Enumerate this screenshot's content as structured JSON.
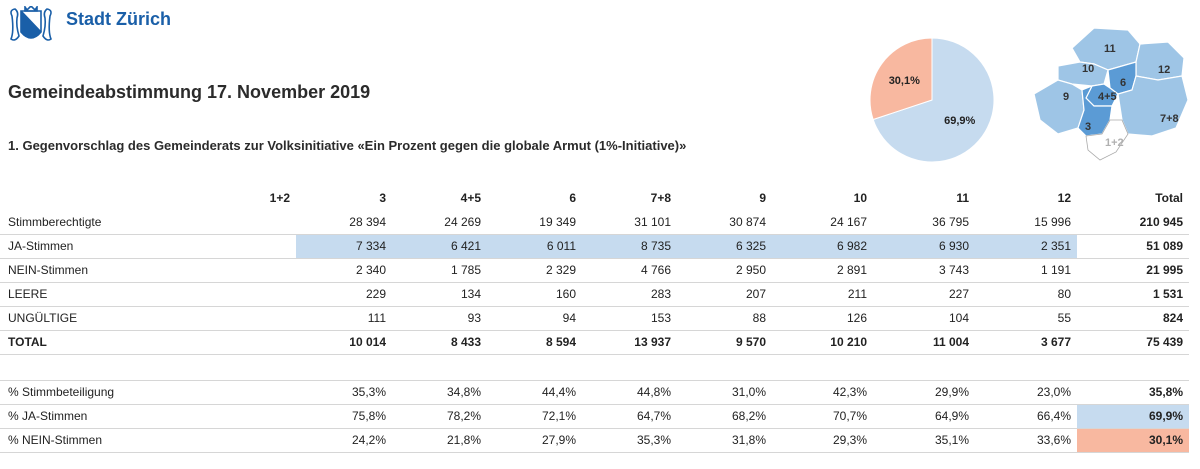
{
  "brand": {
    "name": "Stadt Zürich",
    "logo": "zurich-coat-of-arms-icon"
  },
  "title": "Gemeindeabstimmung 17. November 2019",
  "subtitle": "1. Gegenvorschlag des Gemeinderats zur Volksinitiative «Ein Prozent gegen die globale Armut (1%-Initiative)»",
  "colors": {
    "ja": "#c6dbef",
    "nein": "#f8b8a0",
    "brand": "#1a5fa8",
    "map_fill": "#9ec5e6",
    "map_fill_dark": "#5b9bd5",
    "map_empty": "#ffffff"
  },
  "chart_data": [
    {
      "type": "pie",
      "title": "",
      "slices": [
        {
          "label": "JA",
          "value": 69.9,
          "text": "69,9%",
          "color": "#c6dbef"
        },
        {
          "label": "NEIN",
          "value": 30.1,
          "text": "30,1%",
          "color": "#f8b8a0"
        }
      ]
    },
    {
      "type": "table",
      "columns": [
        "",
        "1+2",
        "3",
        "4+5",
        "6",
        "7+8",
        "9",
        "10",
        "11",
        "12",
        "Total"
      ],
      "rows": [
        {
          "label": "Stimmberechtigte",
          "values": [
            "",
            "28 394",
            "24 269",
            "19 349",
            "31 101",
            "30 874",
            "24 167",
            "36 795",
            "15 996",
            "210 945"
          ]
        },
        {
          "label": "JA-Stimmen",
          "values": [
            "",
            "7 334",
            "6 421",
            "6 011",
            "8 735",
            "6 325",
            "6 982",
            "6 930",
            "2 351",
            "51 089"
          ]
        },
        {
          "label": "NEIN-Stimmen",
          "values": [
            "",
            "2 340",
            "1 785",
            "2 329",
            "4 766",
            "2 950",
            "2 891",
            "3 743",
            "1 191",
            "21 995"
          ]
        },
        {
          "label": "LEERE",
          "values": [
            "",
            "229",
            "134",
            "160",
            "283",
            "207",
            "211",
            "227",
            "80",
            "1 531"
          ]
        },
        {
          "label": "UNGÜLTIGE",
          "values": [
            "",
            "111",
            "93",
            "94",
            "153",
            "88",
            "126",
            "104",
            "55",
            "824"
          ]
        },
        {
          "label": "TOTAL",
          "values": [
            "",
            "10 014",
            "8 433",
            "8 594",
            "13 937",
            "9 570",
            "10 210",
            "11 004",
            "3 677",
            "75 439"
          ]
        }
      ],
      "percent_rows": [
        {
          "label": "% Stimmbeteiligung",
          "values": [
            "",
            "35,3%",
            "34,8%",
            "44,4%",
            "44,8%",
            "31,0%",
            "42,3%",
            "29,9%",
            "23,0%",
            "35,8%"
          ]
        },
        {
          "label": "% JA-Stimmen",
          "values": [
            "",
            "75,8%",
            "78,2%",
            "72,1%",
            "64,7%",
            "68,2%",
            "70,7%",
            "64,9%",
            "66,4%",
            "69,9%"
          ]
        },
        {
          "label": "% NEIN-Stimmen",
          "values": [
            "",
            "24,2%",
            "21,8%",
            "27,9%",
            "35,3%",
            "31,8%",
            "29,3%",
            "35,1%",
            "33,6%",
            "30,1%"
          ]
        }
      ]
    }
  ],
  "map": {
    "districts": [
      {
        "label": "11",
        "ja_pct": 64.9
      },
      {
        "label": "10",
        "ja_pct": 70.7
      },
      {
        "label": "12",
        "ja_pct": 66.4
      },
      {
        "label": "6",
        "ja_pct": 72.1
      },
      {
        "label": "9",
        "ja_pct": 68.2
      },
      {
        "label": "4+5",
        "ja_pct": 78.2
      },
      {
        "label": "7+8",
        "ja_pct": 64.7
      },
      {
        "label": "3",
        "ja_pct": 75.8
      },
      {
        "label": "1+2",
        "ja_pct": null
      }
    ]
  }
}
